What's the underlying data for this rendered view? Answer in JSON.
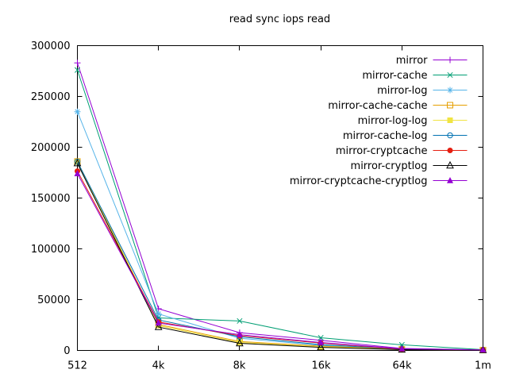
{
  "chart_data": {
    "type": "line",
    "title": "read sync iops read",
    "xlabel": "",
    "ylabel": "",
    "categories": [
      "512",
      "4k",
      "8k",
      "16k",
      "64k",
      "1m"
    ],
    "ylim": [
      0,
      300000
    ],
    "ytick_step": 50000,
    "ytick_labels": [
      "0",
      "50000",
      "100000",
      "150000",
      "200000",
      "250000",
      "300000"
    ],
    "grid": false,
    "legend_position": "top-right-inside",
    "axis_color": "#000000",
    "text_color": "#000000",
    "background_color": "#ffffff",
    "series": [
      {
        "name": "mirror",
        "color": "#9400d3",
        "marker": "plus-marker",
        "values": [
          283000,
          41000,
          17500,
          10000,
          2000,
          600
        ]
      },
      {
        "name": "mirror-cache",
        "color": "#009e73",
        "marker": "cross-marker",
        "values": [
          276000,
          32000,
          29000,
          12500,
          5500,
          800
        ]
      },
      {
        "name": "mirror-log",
        "color": "#56b4e9",
        "marker": "asterisk-marker",
        "values": [
          235000,
          36000,
          12000,
          5000,
          1300,
          450
        ]
      },
      {
        "name": "mirror-cache-cache",
        "color": "#e69f00",
        "marker": "square-open-marker",
        "values": [
          186000,
          25500,
          8800,
          4300,
          1100,
          400
        ]
      },
      {
        "name": "mirror-log-log",
        "color": "#f0e442",
        "marker": "square-filled-marker",
        "values": [
          185400,
          24500,
          7800,
          3500,
          900,
          350
        ]
      },
      {
        "name": "mirror-cache-log",
        "color": "#0072b2",
        "marker": "circle-open-marker",
        "values": [
          185800,
          30000,
          13500,
          5800,
          1400,
          500
        ]
      },
      {
        "name": "mirror-cryptcache",
        "color": "#e51e10",
        "marker": "circle-filled-marker",
        "values": [
          176500,
          28000,
          14500,
          7300,
          1200,
          450
        ]
      },
      {
        "name": "mirror-cryptlog",
        "color": "#000000",
        "marker": "triangle-open-marker",
        "values": [
          184200,
          23000,
          7000,
          3000,
          800,
          350
        ]
      },
      {
        "name": "mirror-cryptcache-cryptlog",
        "color": "#9400d3",
        "marker": "triangle-filled-marker",
        "values": [
          174000,
          27000,
          15500,
          7800,
          1600,
          500
        ]
      }
    ]
  }
}
